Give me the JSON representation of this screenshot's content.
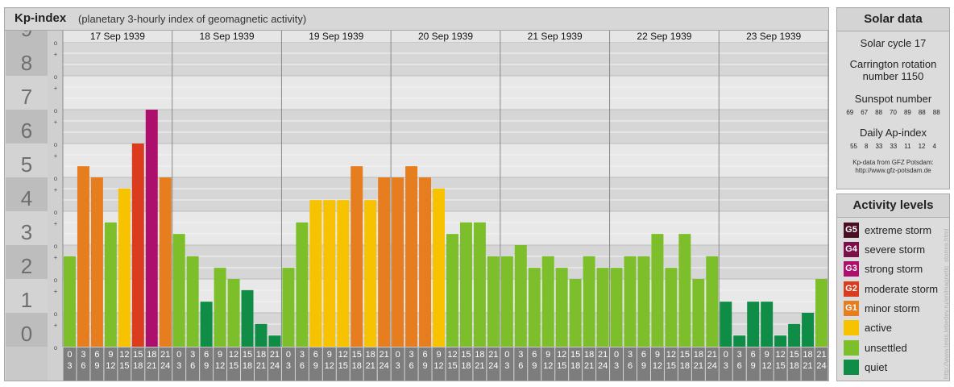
{
  "header": {
    "title": "Kp-index",
    "subtitle": "(planetary 3-hourly index of geomagnetic activity)"
  },
  "solar": {
    "heading": "Solar data",
    "cycle": "Solar cycle 17",
    "carrington_line1": "Carrington rotation",
    "carrington_line2": "number 1150",
    "sunspot_heading": "Sunspot number",
    "sunspots": [
      "69",
      "67",
      "88",
      "70",
      "89",
      "88",
      "88"
    ],
    "ap_heading": "Daily Ap-index",
    "ap": [
      "55",
      "8",
      "33",
      "33",
      "11",
      "12",
      "4"
    ],
    "credit_line1": "Kp-data from GFZ Potsdam:",
    "credit_line2": "http://www.gfz-potsdam.de"
  },
  "levels": {
    "heading": "Activity levels",
    "items": [
      {
        "code": "G5",
        "label": "extreme storm",
        "color": "#4b0f24"
      },
      {
        "code": "G4",
        "label": "severe storm",
        "color": "#7a0f4a"
      },
      {
        "code": "G3",
        "label": "strong storm",
        "color": "#ad0f6c"
      },
      {
        "code": "G2",
        "label": "moderate storm",
        "color": "#dc3c1e"
      },
      {
        "code": "G1",
        "label": "minor storm",
        "color": "#e67d1e"
      },
      {
        "code": "",
        "label": "active",
        "color": "#f7c200"
      },
      {
        "code": "",
        "label": "unsettled",
        "color": "#7cbf2a"
      },
      {
        "code": "",
        "label": "quiet",
        "color": "#0f8c46"
      }
    ]
  },
  "watermark": "http://www.tesis.lebedev.ru/en/magnetic_storms.html",
  "chart_data": {
    "type": "bar",
    "title": "Kp-index",
    "subtitle": "(planetary 3-hourly index of geomagnetic activity)",
    "y_ticks": [
      "0",
      "1",
      "2",
      "3",
      "4",
      "5",
      "6",
      "7",
      "8",
      "9"
    ],
    "ylim": [
      0,
      9
    ],
    "minor_tick_labels": [
      "o",
      "+"
    ],
    "days": [
      "17 Sep 1939",
      "18 Sep 1939",
      "19 Sep 1939",
      "20 Sep 1939",
      "21 Sep 1939",
      "22 Sep 1939",
      "23 Sep 1939"
    ],
    "interval_starts": [
      "0",
      "3",
      "6",
      "9",
      "12",
      "15",
      "18",
      "21"
    ],
    "interval_ends": [
      "3",
      "6",
      "9",
      "12",
      "15",
      "18",
      "21",
      "24"
    ],
    "values": [
      [
        2.67,
        5.33,
        5.0,
        3.67,
        4.67,
        6.0,
        7.0,
        5.0
      ],
      [
        3.33,
        2.67,
        1.33,
        2.33,
        2.0,
        1.67,
        0.67,
        0.33
      ],
      [
        2.33,
        3.67,
        4.33,
        4.33,
        4.33,
        5.33,
        4.33,
        5.0
      ],
      [
        5.0,
        5.33,
        5.0,
        4.67,
        3.33,
        3.67,
        3.67,
        2.67
      ],
      [
        2.67,
        3.0,
        2.33,
        2.67,
        2.33,
        2.0,
        2.67,
        2.33
      ],
      [
        2.33,
        2.67,
        2.67,
        3.33,
        2.33,
        3.33,
        2.0,
        2.67
      ],
      [
        1.33,
        0.33,
        1.33,
        1.33,
        0.33,
        0.67,
        1.0,
        2.0
      ]
    ],
    "colors": {
      "quiet": "#0f8c46",
      "unsettled": "#7cbf2a",
      "active": "#f7c200",
      "g1": "#e67d1e",
      "g2": "#dc3c1e",
      "g3": "#ad0f6c"
    }
  }
}
